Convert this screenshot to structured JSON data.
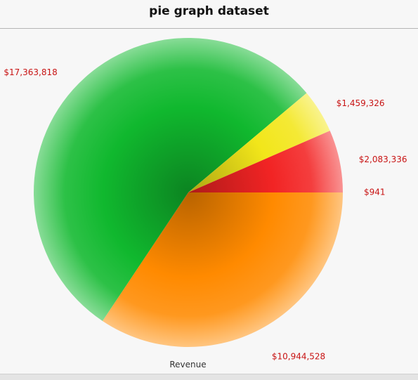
{
  "chart_data": {
    "type": "pie",
    "title": "pie graph dataset",
    "xlabel": "Revenue",
    "start_angle_deg": 0,
    "direction": "clockwise",
    "slices": [
      {
        "value": 941,
        "label": "$941",
        "color": "#e01e1e"
      },
      {
        "value": 10944528,
        "label": "$10,944,528",
        "color": "#ff8a00"
      },
      {
        "value": 17363818,
        "label": "$17,363,818",
        "color": "#10b82e"
      },
      {
        "value": 1459326,
        "label": "$1,459,326",
        "color": "#f2e61a"
      },
      {
        "value": 2083336,
        "label": "$2,083,336",
        "color": "#f22424"
      }
    ]
  }
}
